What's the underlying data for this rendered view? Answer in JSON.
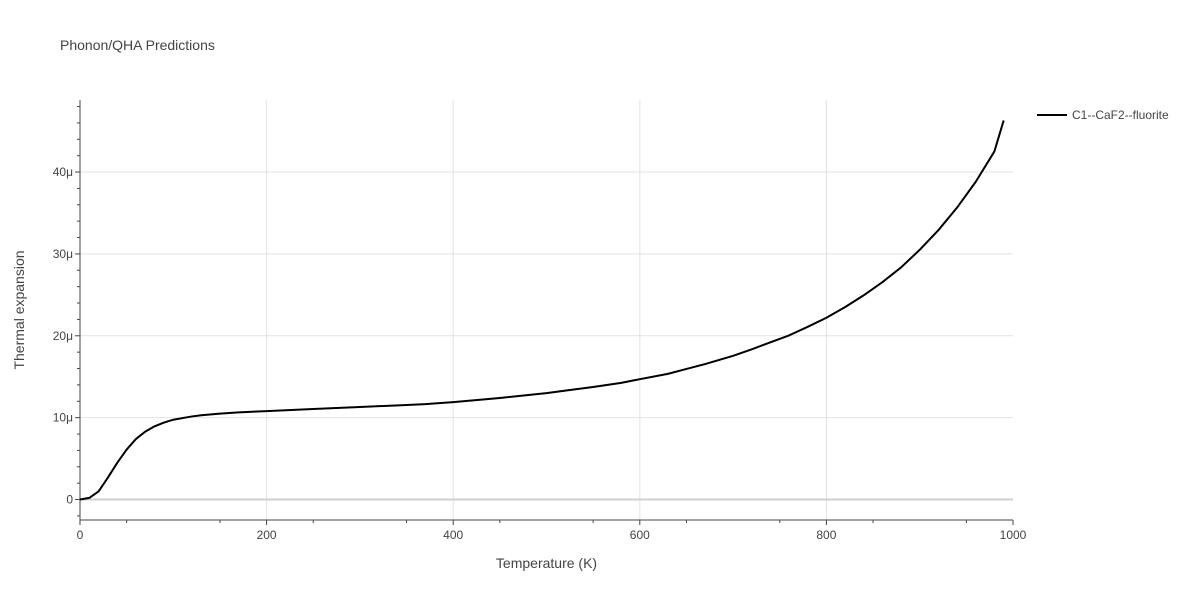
{
  "chart_data": {
    "type": "line",
    "title": "Phonon/QHA Predictions",
    "xlabel": "Temperature (K)",
    "ylabel": "Thermal expansion",
    "xlim": [
      0,
      1000
    ],
    "ylim": [
      -2.5e-06,
      4.88e-05
    ],
    "x_ticks": [
      0,
      200,
      400,
      600,
      800,
      1000
    ],
    "x_tick_labels": [
      "0",
      "200",
      "400",
      "600",
      "800",
      "1000"
    ],
    "y_ticks": [
      0,
      1e-05,
      2e-05,
      3e-05,
      4e-05
    ],
    "y_tick_labels": [
      "0",
      "10μ",
      "20μ",
      "30μ",
      "40μ"
    ],
    "grid": true,
    "legend_position": "top-right",
    "series": [
      {
        "name": "C1--CaF2--fluorite",
        "color": "#000000",
        "x": [
          0,
          10,
          20,
          30,
          40,
          50,
          60,
          70,
          80,
          90,
          100,
          110,
          120,
          130,
          150,
          170,
          200,
          250,
          300,
          350,
          370,
          400,
          450,
          500,
          520,
          550,
          580,
          600,
          630,
          650,
          670,
          700,
          720,
          740,
          760,
          780,
          800,
          820,
          840,
          860,
          880,
          900,
          920,
          940,
          960,
          980,
          990
        ],
        "y": [
          0,
          2e-07,
          1e-06,
          2.7e-06,
          4.5e-06,
          6.1e-06,
          7.4e-06,
          8.3e-06,
          8.95e-06,
          9.4e-06,
          9.75e-06,
          9.95e-06,
          1.015e-05,
          1.03e-05,
          1.05e-05,
          1.065e-05,
          1.08e-05,
          1.105e-05,
          1.13e-05,
          1.155e-05,
          1.165e-05,
          1.19e-05,
          1.24e-05,
          1.3e-05,
          1.33e-05,
          1.375e-05,
          1.425e-05,
          1.47e-05,
          1.535e-05,
          1.595e-05,
          1.655e-05,
          1.755e-05,
          1.835e-05,
          1.92e-05,
          2.005e-05,
          2.11e-05,
          2.22e-05,
          2.35e-05,
          2.495e-05,
          2.655e-05,
          2.835e-05,
          3.05e-05,
          3.29e-05,
          3.565e-05,
          3.88e-05,
          4.25e-05,
          4.63e-05
        ]
      }
    ]
  }
}
